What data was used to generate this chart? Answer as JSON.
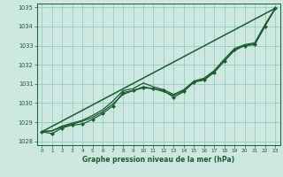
{
  "xlabel": "Graphe pression niveau de la mer (hPa)",
  "ylim": [
    1027.8,
    1035.2
  ],
  "xlim": [
    -0.5,
    23.5
  ],
  "yticks": [
    1028,
    1029,
    1030,
    1031,
    1032,
    1033,
    1034,
    1035
  ],
  "xticks": [
    0,
    1,
    2,
    3,
    4,
    5,
    6,
    7,
    8,
    9,
    10,
    11,
    12,
    13,
    14,
    15,
    16,
    17,
    18,
    19,
    20,
    21,
    22,
    23
  ],
  "bg_color": "#cce8e0",
  "grid_color": "#88c8b8",
  "line_color": "#1a5c30",
  "series_main": [
    1028.5,
    1028.4,
    1028.7,
    1028.85,
    1028.9,
    1029.15,
    1029.45,
    1029.85,
    1030.55,
    1030.65,
    1030.8,
    1030.75,
    1030.65,
    1030.3,
    1030.6,
    1031.1,
    1031.2,
    1031.6,
    1032.2,
    1032.8,
    1033.0,
    1033.05,
    1034.0,
    1034.95
  ],
  "series_smooth": [
    1028.5,
    1028.55,
    1028.75,
    1028.9,
    1029.05,
    1029.25,
    1029.55,
    1029.95,
    1030.45,
    1030.65,
    1030.85,
    1030.75,
    1030.6,
    1030.4,
    1030.65,
    1031.1,
    1031.25,
    1031.65,
    1032.2,
    1032.75,
    1033.0,
    1033.1,
    1034.05,
    1034.9
  ],
  "series_upper": [
    1028.5,
    1028.55,
    1028.8,
    1028.95,
    1029.1,
    1029.35,
    1029.65,
    1030.1,
    1030.65,
    1030.75,
    1031.05,
    1030.85,
    1030.7,
    1030.45,
    1030.7,
    1031.15,
    1031.3,
    1031.7,
    1032.3,
    1032.85,
    1033.05,
    1033.15,
    1034.1,
    1034.95
  ],
  "trend_x": [
    0,
    23
  ],
  "trend_y": [
    1028.5,
    1034.95
  ],
  "marker_style": "D",
  "marker_size": 2.5
}
